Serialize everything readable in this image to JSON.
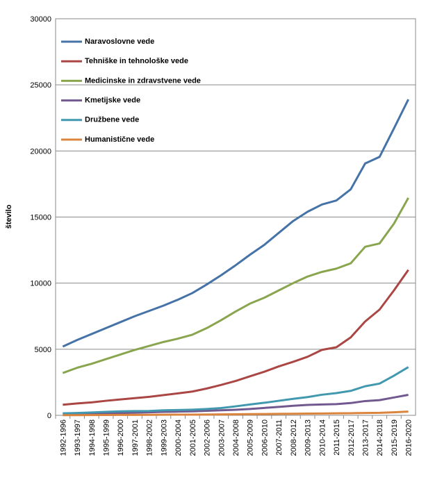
{
  "chart_data": {
    "type": "line",
    "y_label": "število",
    "categories": [
      "1992-1996",
      "1993-1997",
      "1994-1998",
      "1995-1999",
      "1996-2000",
      "1997-2001",
      "1998-2002",
      "1999-2003",
      "2000-2004",
      "2001-2005",
      "2002-2006",
      "2003-2007",
      "2004-2008",
      "2005-2009",
      "2006-2010",
      "2007-2011",
      "2008-2012",
      "2009-2013",
      "2010-2014",
      "2011-2015",
      "2012-2017",
      "2013-2017",
      "2014-2018",
      "2015-2019",
      "2016-2020"
    ],
    "series": [
      {
        "name": "Naravoslovne vede",
        "color": "#4572a7",
        "values": [
          5200,
          5700,
          6150,
          6600,
          7050,
          7500,
          7900,
          8300,
          8750,
          9250,
          9900,
          10600,
          11350,
          12150,
          12900,
          13800,
          14700,
          15400,
          15950,
          16250,
          17100,
          19050,
          19550,
          21700,
          23900
        ]
      },
      {
        "name": "Tehniške in tehnološke vede",
        "color": "#aa4643",
        "values": [
          800,
          900,
          980,
          1100,
          1200,
          1300,
          1400,
          1530,
          1660,
          1800,
          2030,
          2300,
          2600,
          2950,
          3300,
          3700,
          4050,
          4430,
          4950,
          5150,
          5900,
          7100,
          8000,
          9450,
          11000
        ]
      },
      {
        "name": "Medicinske in zdravstvene vede",
        "color": "#89a54e",
        "values": [
          3200,
          3600,
          3900,
          4250,
          4600,
          4950,
          5250,
          5550,
          5800,
          6100,
          6600,
          7200,
          7850,
          8450,
          8900,
          9450,
          10000,
          10500,
          10850,
          11100,
          11500,
          12750,
          13000,
          14500,
          16450
        ]
      },
      {
        "name": "Kmetijske vede",
        "color": "#71588f",
        "values": [
          100,
          120,
          140,
          160,
          180,
          200,
          230,
          260,
          280,
          300,
          340,
          380,
          420,
          480,
          560,
          640,
          720,
          790,
          820,
          850,
          930,
          1080,
          1150,
          1350,
          1550
        ]
      },
      {
        "name": "Družbene vede",
        "color": "#4198af",
        "values": [
          150,
          180,
          220,
          260,
          300,
          320,
          330,
          380,
          400,
          430,
          480,
          550,
          680,
          820,
          950,
          1100,
          1250,
          1380,
          1560,
          1680,
          1850,
          2200,
          2400,
          3000,
          3650
        ]
      },
      {
        "name": "Humanistične vede",
        "color": "#db843d",
        "values": [
          10,
          15,
          20,
          25,
          30,
          35,
          40,
          45,
          50,
          55,
          60,
          70,
          80,
          90,
          100,
          110,
          120,
          130,
          140,
          150,
          160,
          180,
          190,
          230,
          280
        ]
      }
    ],
    "ylim": [
      0,
      30000
    ],
    "yticks": [
      0,
      5000,
      10000,
      15000,
      20000,
      25000,
      30000
    ],
    "grid": true,
    "legend": "top-left"
  }
}
